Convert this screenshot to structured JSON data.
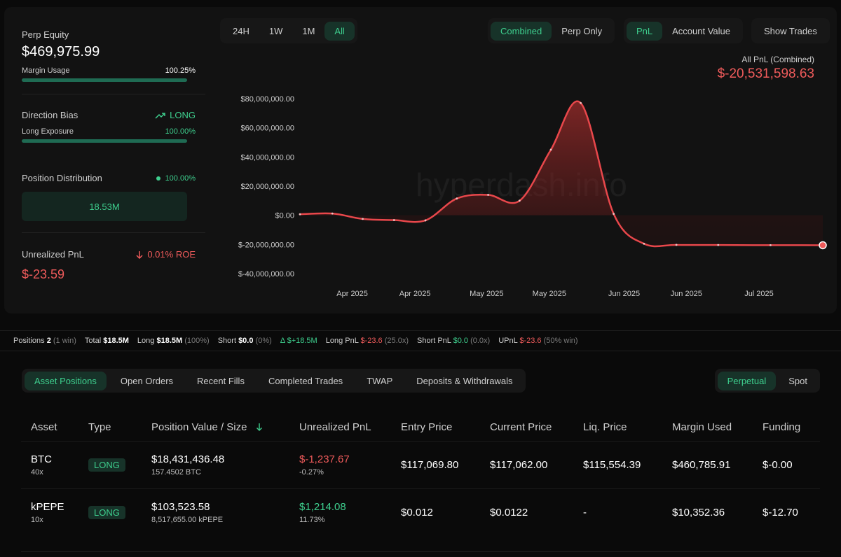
{
  "summary": {
    "perp_equity_label": "Perp Equity",
    "perp_equity_value": "$469,975.99",
    "margin_usage_label": "Margin Usage",
    "margin_usage_value": "100.25%",
    "margin_usage_fraction": 1.0,
    "direction_bias_label": "Direction Bias",
    "direction_bias_value": "LONG",
    "long_exposure_label": "Long Exposure",
    "long_exposure_value": "100.00%",
    "long_exposure_fraction": 1.0,
    "position_distribution_label": "Position Distribution",
    "position_distribution_value": "100.00%",
    "distribution_box_value": "18.53M",
    "unrealized_pnl_label": "Unrealized PnL",
    "roe_value": "0.01% ROE",
    "unrealized_pnl_value": "$-23.59"
  },
  "time_tabs": [
    {
      "label": "24H",
      "active": false
    },
    {
      "label": "1W",
      "active": false
    },
    {
      "label": "1M",
      "active": false
    },
    {
      "label": "All",
      "active": true
    }
  ],
  "mode_tabs": [
    {
      "label": "Combined",
      "active": true
    },
    {
      "label": "Perp Only",
      "active": false
    }
  ],
  "metric_tabs": [
    {
      "label": "PnL",
      "active": true
    },
    {
      "label": "Account Value",
      "active": false
    }
  ],
  "show_trades_label": "Show Trades",
  "chart_header": {
    "label": "All PnL (Combined)",
    "value": "$-20,531,598.63"
  },
  "watermark": "hyperdash.info",
  "chart_data": {
    "type": "area",
    "ylim": [
      -40000000,
      80000000
    ],
    "y_ticks": [
      80000000,
      60000000,
      40000000,
      20000000,
      0,
      -20000000,
      -40000000
    ],
    "y_tick_labels": [
      "$80,000,000.00",
      "$60,000,000.00",
      "$40,000,000.00",
      "$20,000,000.00",
      "$0.00",
      "$-20,000,000.00",
      "$-40,000,000.00"
    ],
    "x_tick_labels": [
      "Apr 2025",
      "Apr 2025",
      "May 2025",
      "May 2025",
      "Jun 2025",
      "Jun 2025",
      "Jul 2025"
    ],
    "x_tick_positions": [
      0.1,
      0.22,
      0.357,
      0.477,
      0.62,
      0.739,
      0.878
    ],
    "series": [
      {
        "points": [
          [
            0.0,
            700000
          ],
          [
            0.062,
            1200000
          ],
          [
            0.12,
            -2500000
          ],
          [
            0.18,
            -3300000
          ],
          [
            0.24,
            -3500000
          ],
          [
            0.3,
            11500000
          ],
          [
            0.36,
            14000000
          ],
          [
            0.42,
            10000000
          ],
          [
            0.48,
            45000000
          ],
          [
            0.537,
            77000000
          ],
          [
            0.6,
            1000000
          ],
          [
            0.658,
            -19500000
          ],
          [
            0.72,
            -20300000
          ],
          [
            0.8,
            -20400000
          ],
          [
            0.9,
            -20500000
          ],
          [
            1.0,
            -20531598
          ]
        ]
      }
    ]
  },
  "stats_strip": {
    "positions_label": "Positions",
    "positions_value": "2",
    "positions_note": "(1 win)",
    "total_label": "Total",
    "total_value": "$18.5M",
    "long_label": "Long",
    "long_value": "$18.5M",
    "long_note": "(100%)",
    "short_label": "Short",
    "short_value": "$0.0",
    "short_note": "(0%)",
    "delta_label": "Δ",
    "delta_value": "$+18.5M",
    "long_pnl_label": "Long PnL",
    "long_pnl_value": "$-23.6",
    "long_pnl_note": "(25.0x)",
    "short_pnl_label": "Short PnL",
    "short_pnl_value": "$0.0",
    "short_pnl_note": "(0.0x)",
    "upnl_label": "UPnL",
    "upnl_value": "$-23.6",
    "upnl_note": "(50% win)"
  },
  "bottom_tabs": [
    {
      "label": "Asset Positions",
      "active": true
    },
    {
      "label": "Open Orders",
      "active": false
    },
    {
      "label": "Recent Fills",
      "active": false
    },
    {
      "label": "Completed Trades",
      "active": false
    },
    {
      "label": "TWAP",
      "active": false
    },
    {
      "label": "Deposits & Withdrawals",
      "active": false
    }
  ],
  "product_tabs": [
    {
      "label": "Perpetual",
      "active": true
    },
    {
      "label": "Spot",
      "active": false
    }
  ],
  "table": {
    "columns": [
      "Asset",
      "Type",
      "Position Value / Size",
      "Unrealized PnL",
      "Entry Price",
      "Current Price",
      "Liq. Price",
      "Margin Used",
      "Funding"
    ],
    "rows": [
      {
        "asset": "BTC",
        "leverage": "40x",
        "type": "LONG",
        "position_value": "$18,431,436.48",
        "size": "157.4502 BTC",
        "upnl": "$-1,237.67",
        "upnl_pct": "-0.27%",
        "upnl_positive": false,
        "entry": "$117,069.80",
        "current": "$117,062.00",
        "liq": "$115,554.39",
        "margin": "$460,785.91",
        "funding": "$-0.00",
        "funding_positive": true
      },
      {
        "asset": "kPEPE",
        "leverage": "10x",
        "type": "LONG",
        "position_value": "$103,523.58",
        "size": "8,517,655.00 kPEPE",
        "upnl": "$1,214.08",
        "upnl_pct": "11.73%",
        "upnl_positive": true,
        "entry": "$0.012",
        "current": "$0.0122",
        "liq": "-",
        "margin": "$10,352.36",
        "funding": "$-12.70",
        "funding_positive": false
      }
    ]
  },
  "colors": {
    "accent_green": "#3ecf8e",
    "negative_red": "#ef5b5b",
    "line_red": "#e8474b"
  },
  "icons": {
    "trend": "trend-up-icon",
    "arrow_down": "arrow-down-icon",
    "sort": "sort-arrow-down-icon"
  }
}
